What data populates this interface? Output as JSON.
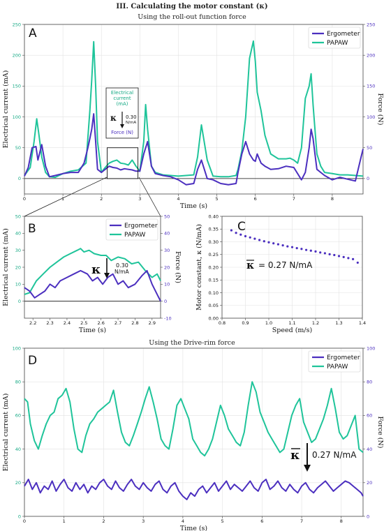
{
  "figure": {
    "title": "III. Calculating the motor constant (κ)",
    "subtitle_top": "Using the roll-out function force",
    "subtitle_bottom": "Using the Drive-rim force"
  },
  "colors": {
    "ergometer": "#4b2fbf",
    "papaw": "#1fc49a",
    "green_tick": "#13a883",
    "purple_tick": "#4b2fbf"
  },
  "legend": {
    "ergometer": "Ergometer",
    "papaw": "PAPAW"
  },
  "panelA": {
    "letter": "A",
    "inset_label_lines": [
      "Electrical",
      "current",
      "(mA)"
    ],
    "inset_kappa": "κ",
    "inset_value": "0.30",
    "inset_unit": "N/mA",
    "inset_force": "Force (N)"
  },
  "panelB": {
    "letter": "B",
    "kappa": "κ",
    "value": "0.30",
    "unit": "N/mA"
  },
  "panelC": {
    "letter": "C",
    "kappa_mean": "κ",
    "kappa_text": "= 0.27 N/mA"
  },
  "panelD": {
    "letter": "D",
    "kappa_mean": "κ",
    "kappa_text": "0.27 N/mA"
  },
  "chart_data": [
    {
      "id": "A",
      "type": "line",
      "xlabel": "Time (s)",
      "ylabel": "Electrical current (mA)",
      "y2label": "Force (N)",
      "xlim": [
        0,
        8.8
      ],
      "ylim": [
        -25,
        250
      ],
      "y2lim": [
        -25,
        250
      ],
      "xticks": [
        0,
        1,
        2,
        3,
        4,
        5,
        6,
        7,
        8
      ],
      "yticks": [
        0,
        50,
        100,
        150,
        200,
        250
      ],
      "y2ticks": [
        0,
        50,
        100,
        150,
        200,
        250
      ],
      "series": [
        {
          "name": "PAPAW",
          "axis": "left",
          "x": [
            0,
            0.15,
            0.25,
            0.32,
            0.38,
            0.45,
            0.55,
            0.65,
            0.8,
            1.0,
            1.2,
            1.4,
            1.6,
            1.7,
            1.75,
            1.8,
            1.85,
            1.9,
            2.0,
            2.1,
            2.2,
            2.3,
            2.4,
            2.5,
            2.6,
            2.7,
            2.8,
            2.9,
            3.0,
            3.1,
            3.15,
            3.2,
            3.3,
            3.4,
            3.6,
            3.8,
            4.0,
            4.2,
            4.4,
            4.5,
            4.6,
            4.75,
            4.9,
            5.1,
            5.3,
            5.5,
            5.55,
            5.65,
            5.75,
            5.85,
            5.95,
            6.0,
            6.05,
            6.15,
            6.25,
            6.4,
            6.6,
            6.8,
            6.9,
            7.0,
            7.1,
            7.2,
            7.3,
            7.4,
            7.45,
            7.5,
            7.55,
            7.6,
            7.7,
            7.8,
            8.0,
            8.2,
            8.4,
            8.6,
            8.8
          ],
          "y": [
            5,
            18,
            60,
            97,
            70,
            35,
            10,
            3,
            2,
            8,
            12,
            14,
            25,
            110,
            160,
            222,
            150,
            60,
            10,
            18,
            25,
            28,
            30,
            25,
            24,
            22,
            30,
            20,
            12,
            60,
            120,
            80,
            20,
            10,
            6,
            5,
            4,
            5,
            6,
            35,
            87,
            30,
            4,
            3,
            3,
            5,
            15,
            45,
            100,
            195,
            223,
            190,
            140,
            110,
            70,
            40,
            32,
            32,
            33,
            30,
            25,
            50,
            130,
            150,
            170,
            120,
            80,
            40,
            20,
            10,
            8,
            6,
            6,
            5,
            4
          ]
        },
        {
          "name": "Ergometer",
          "axis": "right",
          "x": [
            0,
            0.1,
            0.2,
            0.3,
            0.35,
            0.45,
            0.55,
            0.65,
            0.8,
            1.0,
            1.2,
            1.4,
            1.55,
            1.65,
            1.7,
            1.75,
            1.8,
            1.85,
            1.9,
            2.0,
            2.1,
            2.2,
            2.3,
            2.4,
            2.5,
            2.6,
            2.7,
            2.8,
            2.9,
            3.0,
            3.1,
            3.2,
            3.3,
            3.4,
            3.6,
            3.8,
            4.0,
            4.2,
            4.4,
            4.5,
            4.6,
            4.75,
            4.9,
            5.1,
            5.3,
            5.5,
            5.55,
            5.65,
            5.75,
            5.85,
            5.95,
            6.0,
            6.05,
            6.15,
            6.25,
            6.4,
            6.6,
            6.8,
            7.0,
            7.2,
            7.3,
            7.4,
            7.45,
            7.5,
            7.55,
            7.6,
            7.7,
            7.8,
            8.0,
            8.2,
            8.4,
            8.6,
            8.75,
            8.8
          ],
          "y": [
            4,
            18,
            50,
            52,
            30,
            55,
            20,
            3,
            5,
            8,
            10,
            10,
            25,
            50,
            65,
            80,
            105,
            60,
            15,
            10,
            15,
            20,
            18,
            17,
            14,
            16,
            15,
            14,
            12,
            12,
            40,
            60,
            20,
            8,
            5,
            3,
            -2,
            -10,
            -8,
            15,
            30,
            0,
            -2,
            -8,
            -10,
            -8,
            10,
            40,
            60,
            40,
            30,
            28,
            40,
            25,
            20,
            15,
            16,
            20,
            18,
            -2,
            10,
            50,
            80,
            65,
            40,
            15,
            10,
            5,
            -2,
            2,
            -1,
            -4,
            35,
            48
          ]
        }
      ]
    },
    {
      "id": "B",
      "type": "line",
      "xlabel": "Time (s)",
      "ylabel": "Electrical current (mA)",
      "y2label": "Force (N)",
      "xlim": [
        2.15,
        2.95
      ],
      "ylim": [
        -10,
        50
      ],
      "y2lim": [
        -10,
        50
      ],
      "xticks": [
        2.2,
        2.3,
        2.4,
        2.5,
        2.6,
        2.7,
        2.8,
        2.9
      ],
      "xticklabels": [
        "2.2",
        "2.3",
        "2.4",
        "2.5",
        "2.6",
        "2.7",
        "2.8",
        "2.9"
      ],
      "yticks": [
        0,
        10,
        20,
        30,
        40,
        50
      ],
      "y2ticks": [
        -10,
        0,
        10,
        20,
        30,
        40,
        50
      ],
      "series": [
        {
          "name": "PAPAW",
          "axis": "left",
          "x": [
            2.15,
            2.18,
            2.22,
            2.26,
            2.3,
            2.34,
            2.38,
            2.42,
            2.46,
            2.48,
            2.5,
            2.53,
            2.56,
            2.6,
            2.63,
            2.66,
            2.7,
            2.74,
            2.78,
            2.82,
            2.86,
            2.9,
            2.93,
            2.95
          ],
          "y": [
            4,
            5,
            12,
            16,
            20,
            23,
            26,
            28,
            30,
            31,
            29,
            30,
            28,
            27,
            27,
            24,
            26,
            25,
            22,
            23,
            18,
            14,
            16,
            12
          ]
        },
        {
          "name": "Ergometer",
          "axis": "right",
          "x": [
            2.15,
            2.18,
            2.21,
            2.24,
            2.27,
            2.3,
            2.33,
            2.36,
            2.4,
            2.44,
            2.48,
            2.52,
            2.55,
            2.58,
            2.61,
            2.64,
            2.67,
            2.7,
            2.73,
            2.76,
            2.8,
            2.84,
            2.87,
            2.9,
            2.93,
            2.95
          ],
          "y": [
            8,
            6,
            2,
            4,
            6,
            10,
            8,
            12,
            14,
            16,
            18,
            16,
            12,
            14,
            10,
            14,
            16,
            10,
            12,
            8,
            10,
            15,
            18,
            10,
            4,
            0
          ]
        }
      ]
    },
    {
      "id": "C",
      "type": "scatter",
      "xlabel": "Speed (m/s)",
      "ylabel": "Motor constant, κ (N/mA)",
      "xlim": [
        0.8,
        1.4
      ],
      "ylim": [
        0,
        0.4
      ],
      "xticks": [
        0.8,
        0.9,
        1.0,
        1.1,
        1.2,
        1.3,
        1.4
      ],
      "xticklabels": [
        "0.8",
        "0.9",
        "1.0",
        "1.1",
        "1.2",
        "1.3",
        "1.4"
      ],
      "yticks": [
        0,
        0.05,
        0.1,
        0.15,
        0.2,
        0.25,
        0.3,
        0.35,
        0.4
      ],
      "yticklabels": [
        "0.00",
        "0.05",
        "0.10",
        "0.15",
        "0.20",
        "0.25",
        "0.30",
        "0.35",
        "0.40"
      ],
      "series": [
        {
          "name": "Motor constant",
          "x": [
            0.84,
            0.86,
            0.88,
            0.9,
            0.92,
            0.94,
            0.96,
            0.98,
            1.0,
            1.02,
            1.04,
            1.06,
            1.08,
            1.1,
            1.12,
            1.14,
            1.16,
            1.18,
            1.2,
            1.22,
            1.24,
            1.26,
            1.28,
            1.3,
            1.32,
            1.34,
            1.36,
            1.38
          ],
          "y": [
            0.345,
            0.335,
            0.328,
            0.322,
            0.317,
            0.312,
            0.307,
            0.302,
            0.298,
            0.294,
            0.29,
            0.286,
            0.282,
            0.279,
            0.275,
            0.272,
            0.268,
            0.265,
            0.262,
            0.258,
            0.255,
            0.251,
            0.248,
            0.244,
            0.24,
            0.236,
            0.232,
            0.218
          ]
        }
      ]
    },
    {
      "id": "D",
      "type": "line",
      "xlabel": "Time (s)",
      "ylabel": "Electrical current (mA)",
      "y2label": "Force (N)",
      "xlim": [
        0,
        8.55
      ],
      "ylim": [
        0,
        100
      ],
      "y2lim": [
        0,
        100
      ],
      "xticks": [
        0,
        1,
        2,
        3,
        4,
        5,
        6,
        7,
        8
      ],
      "yticks": [
        0,
        20,
        40,
        60,
        80,
        100
      ],
      "y2ticks": [
        0,
        20,
        40,
        60,
        80,
        100
      ],
      "series": [
        {
          "name": "PAPAW",
          "axis": "left",
          "x": [
            0,
            0.08,
            0.15,
            0.25,
            0.35,
            0.45,
            0.55,
            0.65,
            0.75,
            0.85,
            0.95,
            1.05,
            1.15,
            1.25,
            1.35,
            1.45,
            1.55,
            1.65,
            1.75,
            1.85,
            1.95,
            2.05,
            2.15,
            2.25,
            2.35,
            2.45,
            2.55,
            2.65,
            2.75,
            2.85,
            2.95,
            3.05,
            3.15,
            3.25,
            3.35,
            3.45,
            3.55,
            3.65,
            3.75,
            3.85,
            3.95,
            4.05,
            4.15,
            4.25,
            4.35,
            4.45,
            4.55,
            4.65,
            4.75,
            4.85,
            4.95,
            5.05,
            5.15,
            5.25,
            5.35,
            5.45,
            5.55,
            5.65,
            5.75,
            5.85,
            5.95,
            6.05,
            6.15,
            6.25,
            6.35,
            6.45,
            6.55,
            6.65,
            6.75,
            6.85,
            6.95,
            7.05,
            7.15,
            7.25,
            7.35,
            7.45,
            7.55,
            7.65,
            7.75,
            7.85,
            7.95,
            8.05,
            8.15,
            8.25,
            8.35,
            8.45,
            8.55
          ],
          "y": [
            70,
            68,
            55,
            45,
            40,
            48,
            55,
            60,
            62,
            70,
            72,
            76,
            68,
            52,
            40,
            38,
            48,
            55,
            58,
            62,
            64,
            66,
            68,
            75,
            62,
            50,
            44,
            42,
            48,
            55,
            62,
            70,
            77,
            68,
            58,
            46,
            42,
            40,
            52,
            66,
            70,
            64,
            58,
            46,
            42,
            38,
            36,
            40,
            46,
            56,
            66,
            60,
            52,
            48,
            44,
            42,
            50,
            66,
            80,
            74,
            62,
            56,
            50,
            46,
            42,
            38,
            40,
            50,
            60,
            66,
            70,
            56,
            50,
            44,
            46,
            52,
            58,
            66,
            76,
            64,
            50,
            46,
            48,
            54,
            60,
            40,
            38
          ]
        },
        {
          "name": "Ergometer",
          "axis": "right",
          "x": [
            0,
            0.1,
            0.2,
            0.3,
            0.4,
            0.5,
            0.6,
            0.7,
            0.8,
            0.9,
            1.0,
            1.1,
            1.2,
            1.3,
            1.4,
            1.5,
            1.6,
            1.7,
            1.8,
            1.9,
            2.0,
            2.1,
            2.2,
            2.3,
            2.4,
            2.5,
            2.6,
            2.7,
            2.8,
            2.9,
            3.0,
            3.1,
            3.2,
            3.3,
            3.4,
            3.5,
            3.6,
            3.7,
            3.8,
            3.9,
            4.0,
            4.1,
            4.2,
            4.3,
            4.4,
            4.5,
            4.6,
            4.7,
            4.8,
            4.9,
            5.0,
            5.1,
            5.2,
            5.3,
            5.4,
            5.5,
            5.6,
            5.7,
            5.8,
            5.9,
            6.0,
            6.1,
            6.2,
            6.3,
            6.4,
            6.5,
            6.6,
            6.7,
            6.8,
            6.9,
            7.0,
            7.1,
            7.2,
            7.3,
            7.4,
            7.5,
            7.6,
            7.7,
            7.8,
            7.9,
            8.0,
            8.1,
            8.2,
            8.3,
            8.4,
            8.5,
            8.55
          ],
          "y": [
            18,
            22,
            16,
            20,
            14,
            18,
            16,
            21,
            15,
            19,
            22,
            17,
            15,
            20,
            16,
            19,
            14,
            18,
            16,
            20,
            22,
            18,
            16,
            21,
            17,
            15,
            19,
            22,
            18,
            16,
            20,
            17,
            15,
            19,
            21,
            16,
            14,
            18,
            20,
            15,
            12,
            10,
            14,
            12,
            16,
            18,
            14,
            17,
            20,
            15,
            18,
            21,
            16,
            19,
            17,
            15,
            18,
            21,
            17,
            15,
            20,
            22,
            16,
            18,
            21,
            17,
            15,
            19,
            16,
            14,
            18,
            20,
            16,
            14,
            17,
            19,
            21,
            18,
            15,
            17,
            19,
            21,
            20,
            18,
            16,
            14,
            12
          ]
        }
      ]
    }
  ]
}
